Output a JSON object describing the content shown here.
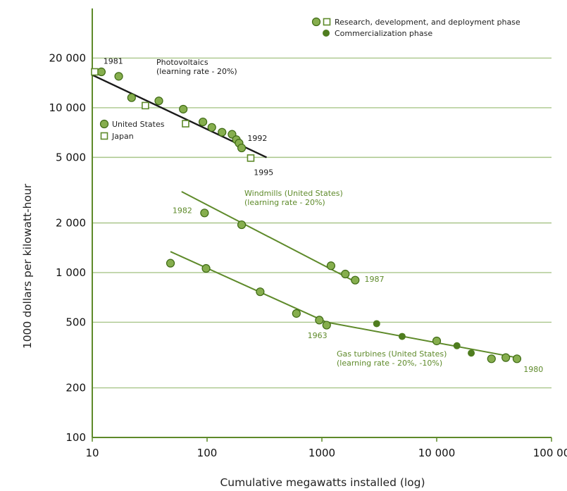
{
  "chart_data": {
    "type": "scatter",
    "x_scale": "log",
    "y_scale": "log",
    "xlabel": "Cumulative megawatts installed (log)",
    "ylabel": "1000 dollars per kilowatt-hour",
    "xlim": [
      10,
      100000
    ],
    "ylim": [
      100,
      40000
    ],
    "grid": "horizontal",
    "x_ticks": [
      {
        "value": 10,
        "label": "10"
      },
      {
        "value": 100,
        "label": "100"
      },
      {
        "value": 1000,
        "label": "1000"
      },
      {
        "value": 10000,
        "label": "10 000"
      },
      {
        "value": 100000,
        "label": "100 00"
      }
    ],
    "y_ticks": [
      {
        "value": 100,
        "label": "100"
      },
      {
        "value": 200,
        "label": "200"
      },
      {
        "value": 500,
        "label": "500"
      },
      {
        "value": 1000,
        "label": "1 000"
      },
      {
        "value": 2000,
        "label": "2 000"
      },
      {
        "value": 5000,
        "label": "5 000"
      },
      {
        "value": 10000,
        "label": "10 000"
      },
      {
        "value": 20000,
        "label": "20 000"
      }
    ],
    "legend": {
      "position": "top-right",
      "items": [
        {
          "label": "Research, development, and deployment phase"
        },
        {
          "label": "Commercialization phase"
        }
      ]
    },
    "inset_legend": {
      "position": "top-left",
      "items": [
        {
          "label": "United States",
          "marker": "circle"
        },
        {
          "label": "Japan",
          "marker": "square"
        }
      ]
    },
    "series": [
      {
        "label": "Photovoltaics (learning rate - 20%)",
        "label_lines": [
          "Photovoltaics",
          "(learning rate - 20%)"
        ],
        "color": "#1a1a1a",
        "us_points": [
          {
            "x": 12,
            "y": 16500
          },
          {
            "x": 17,
            "y": 15500
          },
          {
            "x": 22,
            "y": 11500
          },
          {
            "x": 38,
            "y": 11000
          },
          {
            "x": 62,
            "y": 9800
          },
          {
            "x": 92,
            "y": 8200
          },
          {
            "x": 110,
            "y": 7600
          },
          {
            "x": 135,
            "y": 7100
          },
          {
            "x": 165,
            "y": 6900
          },
          {
            "x": 180,
            "y": 6400
          },
          {
            "x": 190,
            "y": 6100
          },
          {
            "x": 200,
            "y": 5700
          }
        ],
        "japan_points": [
          {
            "x": 10.5,
            "y": 16500
          },
          {
            "x": 29,
            "y": 10300
          },
          {
            "x": 65,
            "y": 8000
          },
          {
            "x": 240,
            "y": 4950
          }
        ],
        "fit_line": [
          {
            "x": 10,
            "y": 15800
          },
          {
            "x": 330,
            "y": 5000
          }
        ],
        "annotations": [
          {
            "text": "1981",
            "x": 12.5,
            "y": 18500
          },
          {
            "text": "1992",
            "x": 225,
            "y": 6300
          },
          {
            "text": "1995",
            "x": 255,
            "y": 3900
          }
        ]
      },
      {
        "label": "Windmills (United States) (learning rate - 20%)",
        "label_lines": [
          "Windmills (United States)",
          "(learning rate - 20%)"
        ],
        "color": "#5e8a2a",
        "points": [
          {
            "x": 95,
            "y": 2300
          },
          {
            "x": 200,
            "y": 1950
          },
          {
            "x": 1200,
            "y": 1100
          },
          {
            "x": 1600,
            "y": 980
          },
          {
            "x": 1950,
            "y": 900
          }
        ],
        "fit_line": [
          {
            "x": 60,
            "y": 3100
          },
          {
            "x": 1950,
            "y": 880
          }
        ],
        "annotations": [
          {
            "text": "1982",
            "x": 50,
            "y": 2300
          },
          {
            "text": "1987",
            "x": 2350,
            "y": 880
          }
        ]
      },
      {
        "label": "Gas turbines (United States) (learning rate - 20%, -10%)",
        "label_lines": [
          "Gas turbines (United States)",
          "(learning rate - 20%, -10%)"
        ],
        "color": "#5e8a2a",
        "rdd_points": [
          {
            "x": 48,
            "y": 1140
          },
          {
            "x": 98,
            "y": 1060
          },
          {
            "x": 290,
            "y": 765
          },
          {
            "x": 600,
            "y": 565
          },
          {
            "x": 950,
            "y": 515
          },
          {
            "x": 1100,
            "y": 480
          },
          {
            "x": 10000,
            "y": 385
          },
          {
            "x": 30000,
            "y": 300
          },
          {
            "x": 40000,
            "y": 305
          },
          {
            "x": 50000,
            "y": 300
          }
        ],
        "commercial_points": [
          {
            "x": 3000,
            "y": 490
          },
          {
            "x": 5000,
            "y": 410
          },
          {
            "x": 15000,
            "y": 360
          },
          {
            "x": 20000,
            "y": 325
          }
        ],
        "fit_line": [
          {
            "x": 48,
            "y": 1340
          },
          {
            "x": 1100,
            "y": 500
          },
          {
            "x": 50000,
            "y": 305
          }
        ],
        "annotations": [
          {
            "text": "1963",
            "x": 750,
            "y": 400
          },
          {
            "text": "1980",
            "x": 57000,
            "y": 250
          }
        ]
      }
    ]
  }
}
